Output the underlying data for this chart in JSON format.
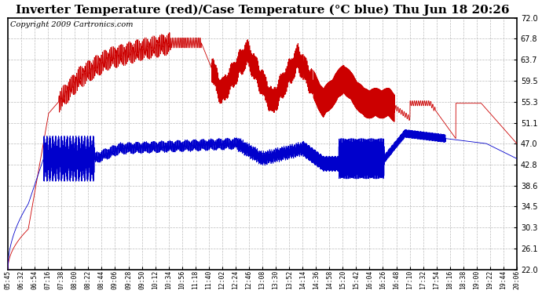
{
  "title": "Inverter Temperature (red)/Case Temperature (°C blue) Thu Jun 18 20:26",
  "copyright": "Copyright 2009 Cartronics.com",
  "ylim": [
    22.0,
    72.0
  ],
  "yticks": [
    22.0,
    26.1,
    30.3,
    34.5,
    38.6,
    42.8,
    47.0,
    51.1,
    55.3,
    59.5,
    63.7,
    67.8,
    72.0
  ],
  "xtick_labels": [
    "05:45",
    "06:32",
    "06:54",
    "07:16",
    "07:38",
    "08:00",
    "08:22",
    "08:44",
    "09:06",
    "09:28",
    "09:50",
    "10:12",
    "10:34",
    "10:56",
    "11:18",
    "11:40",
    "12:02",
    "12:24",
    "12:46",
    "13:08",
    "13:30",
    "13:52",
    "14:14",
    "14:36",
    "14:58",
    "15:20",
    "15:42",
    "16:04",
    "16:26",
    "16:48",
    "17:10",
    "17:32",
    "17:54",
    "18:16",
    "18:38",
    "19:00",
    "19:22",
    "19:44",
    "20:06"
  ],
  "background_color": "#ffffff",
  "plot_bg_color": "#ffffff",
  "grid_color": "#bbbbbb",
  "red_color": "#cc0000",
  "blue_color": "#0000cc",
  "title_fontsize": 11,
  "copyright_fontsize": 7
}
